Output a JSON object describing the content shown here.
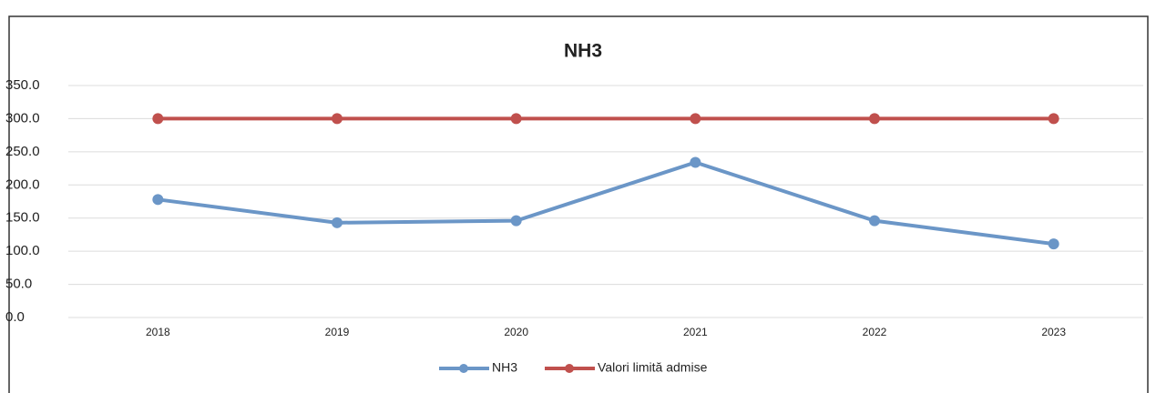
{
  "chart_data": {
    "type": "line",
    "title": "NH3",
    "categories": [
      "2018",
      "2019",
      "2020",
      "2021",
      "2022",
      "2023"
    ],
    "series": [
      {
        "name": "NH3",
        "color": "#6b96c7",
        "values": [
          178,
          143,
          146,
          234,
          146,
          111
        ]
      },
      {
        "name": "Valori limită admise",
        "color": "#c0504d",
        "values": [
          300,
          300,
          300,
          300,
          300,
          300
        ]
      }
    ],
    "ylim": [
      0,
      350
    ],
    "yticks": [
      {
        "value": 0,
        "label": "0.0"
      },
      {
        "value": 50,
        "label": "50.0"
      },
      {
        "value": 100,
        "label": "100.0"
      },
      {
        "value": 150,
        "label": "150.0"
      },
      {
        "value": 200,
        "label": "200.0"
      },
      {
        "value": 250,
        "label": "250.0"
      },
      {
        "value": 300,
        "label": "300.0"
      },
      {
        "value": 350,
        "label": "350.0"
      }
    ],
    "grid": true,
    "legend": "bottom"
  }
}
